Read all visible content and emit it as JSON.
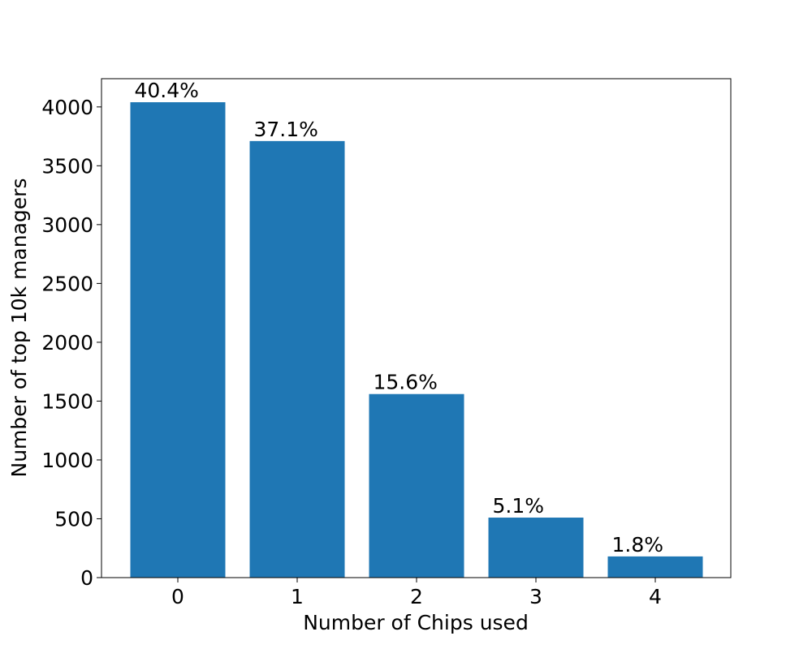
{
  "chart_data": {
    "type": "bar",
    "title": "",
    "xlabel": "Number of Chips used",
    "ylabel": "Number of top 10k managers",
    "categories": [
      "0",
      "1",
      "2",
      "3",
      "4"
    ],
    "values": [
      4040,
      3710,
      1560,
      510,
      180
    ],
    "data_labels": [
      "40.4%",
      "37.1%",
      "15.6%",
      "5.1%",
      "1.8%"
    ],
    "ylim": [
      0,
      4240
    ],
    "yticks": [
      0,
      500,
      1000,
      1500,
      2000,
      2500,
      3000,
      3500,
      4000
    ],
    "grid": false,
    "legend": "none",
    "bar_color": "#1f77b4"
  }
}
